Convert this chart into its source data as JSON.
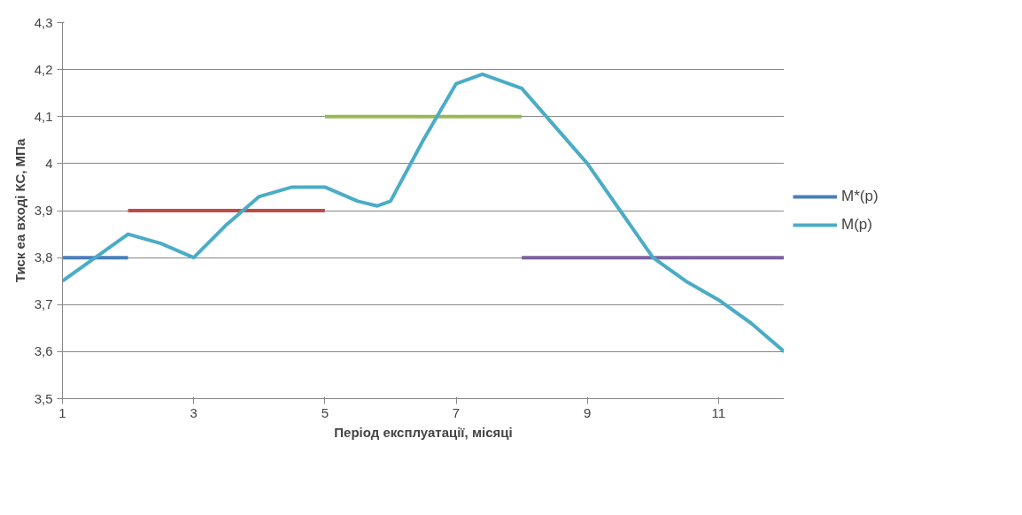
{
  "chart_data": {
    "type": "line",
    "xlabel": "Період експлуатації, місяці",
    "ylabel": "Тиск еа вході КС, МПа",
    "xlim": [
      1,
      12
    ],
    "xticks": [
      1,
      3,
      5,
      7,
      9,
      11
    ],
    "ylim": [
      3.5,
      4.3
    ],
    "yticks": [
      {
        "value": 3.5,
        "label": "3,5"
      },
      {
        "value": 3.6,
        "label": "3,6"
      },
      {
        "value": 3.7,
        "label": "3,7"
      },
      {
        "value": 3.8,
        "label": "3,8"
      },
      {
        "value": 3.9,
        "label": "3,9"
      },
      4,
      {
        "value": 4.1,
        "label": "4,1"
      },
      {
        "value": 4.2,
        "label": "4,2"
      },
      {
        "value": 4.3,
        "label": "4,3"
      }
    ],
    "grid": "y",
    "legend": "right",
    "marker": "none",
    "line_style": "solid",
    "series": [
      {
        "name": "M*(p)",
        "color": "#4a7ebb",
        "x": [
          1,
          2
        ],
        "values": [
          3.8,
          3.8
        ]
      },
      {
        "color": "#be4b48",
        "x": [
          2,
          5
        ],
        "values": [
          3.9,
          3.9
        ]
      },
      {
        "color": "#98b954",
        "x": [
          5,
          8
        ],
        "values": [
          4.1,
          4.1
        ]
      },
      {
        "color": "#7d60a0",
        "x": [
          8,
          12
        ],
        "values": [
          3.8,
          3.8
        ]
      },
      {
        "name": "M(p)",
        "color": "#4bacc6",
        "x": [
          1,
          1.5,
          2,
          2.5,
          3,
          3.5,
          4,
          4.5,
          5,
          5.5,
          5.8,
          6,
          6.5,
          7,
          7.4,
          8,
          8.5,
          9,
          9.5,
          10,
          10.5,
          11,
          11.5,
          12
        ],
        "values": [
          3.75,
          3.8,
          3.85,
          3.83,
          3.8,
          3.87,
          3.93,
          3.95,
          3.95,
          3.92,
          3.91,
          3.92,
          4.05,
          4.17,
          4.19,
          4.16,
          4.08,
          4.0,
          3.9,
          3.8,
          3.75,
          3.71,
          3.66,
          3.6
        ]
      }
    ]
  }
}
